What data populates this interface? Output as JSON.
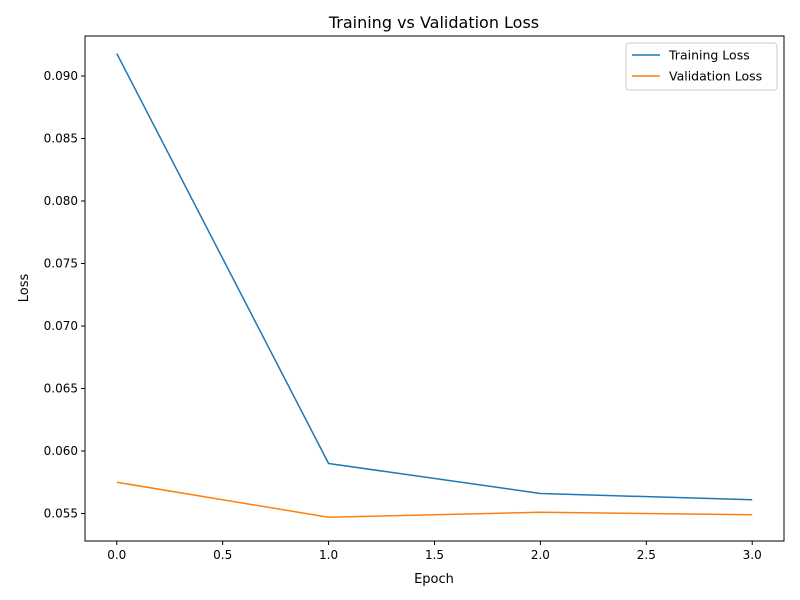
{
  "chart_data": {
    "type": "line",
    "title": "Training vs Validation Loss",
    "xlabel": "Epoch",
    "ylabel": "Loss",
    "x": [
      0,
      1,
      2,
      3
    ],
    "xlim": [
      -0.15,
      3.15
    ],
    "ylim": [
      0.0528,
      0.0932
    ],
    "xticks": [
      0,
      0.5,
      1,
      1.5,
      2,
      2.5,
      3
    ],
    "xtick_labels": [
      "0.0",
      "0.5",
      "1.0",
      "1.5",
      "2.0",
      "2.5",
      "3.0"
    ],
    "yticks": [
      0.055,
      0.06,
      0.065,
      0.07,
      0.075,
      0.08,
      0.085,
      0.09
    ],
    "ytick_labels": [
      "0.055",
      "0.060",
      "0.065",
      "0.070",
      "0.075",
      "0.080",
      "0.085",
      "0.090"
    ],
    "grid": false,
    "legend_position": "top-right",
    "series": [
      {
        "name": "Training Loss",
        "values": [
          0.0918,
          0.059,
          0.0566,
          0.0561
        ],
        "color": "#1f77b4"
      },
      {
        "name": "Validation Loss",
        "values": [
          0.0575,
          0.0547,
          0.0551,
          0.0549
        ],
        "color": "#ff7f0e"
      }
    ]
  }
}
